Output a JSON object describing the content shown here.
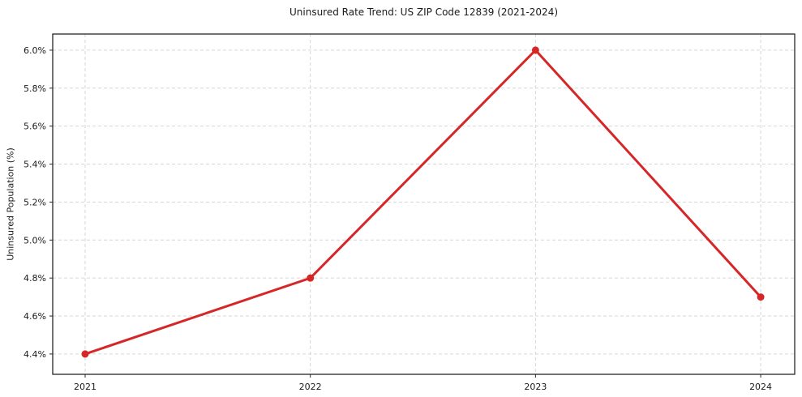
{
  "chart_data": {
    "type": "line",
    "title": "Uninsured Rate Trend: US ZIP Code 12839 (2021-2024)",
    "xlabel": "",
    "ylabel": "Uninsured Population (%)",
    "x": [
      2021,
      2022,
      2023,
      2024
    ],
    "values": [
      4.4,
      4.8,
      6.0,
      4.7
    ],
    "xtick_labels": [
      "2021",
      "2022",
      "2023",
      "2024"
    ],
    "ytick_values": [
      4.4,
      4.6,
      4.8,
      5.0,
      5.2,
      5.4,
      5.6,
      5.8,
      6.0
    ],
    "ytick_labels": [
      "4.4%",
      "4.6%",
      "4.8%",
      "5.0%",
      "5.2%",
      "5.4%",
      "5.6%",
      "5.8%",
      "6.0%"
    ],
    "xlim": [
      2020.856,
      2024.151
    ],
    "ylim": [
      4.293,
      6.085
    ],
    "grid": "dashed",
    "legend": "none",
    "line_color": "#d62728",
    "marker": "circle",
    "grid_color": "#d6d6d6",
    "axis_color": "#262626",
    "background": "#ffffff"
  }
}
